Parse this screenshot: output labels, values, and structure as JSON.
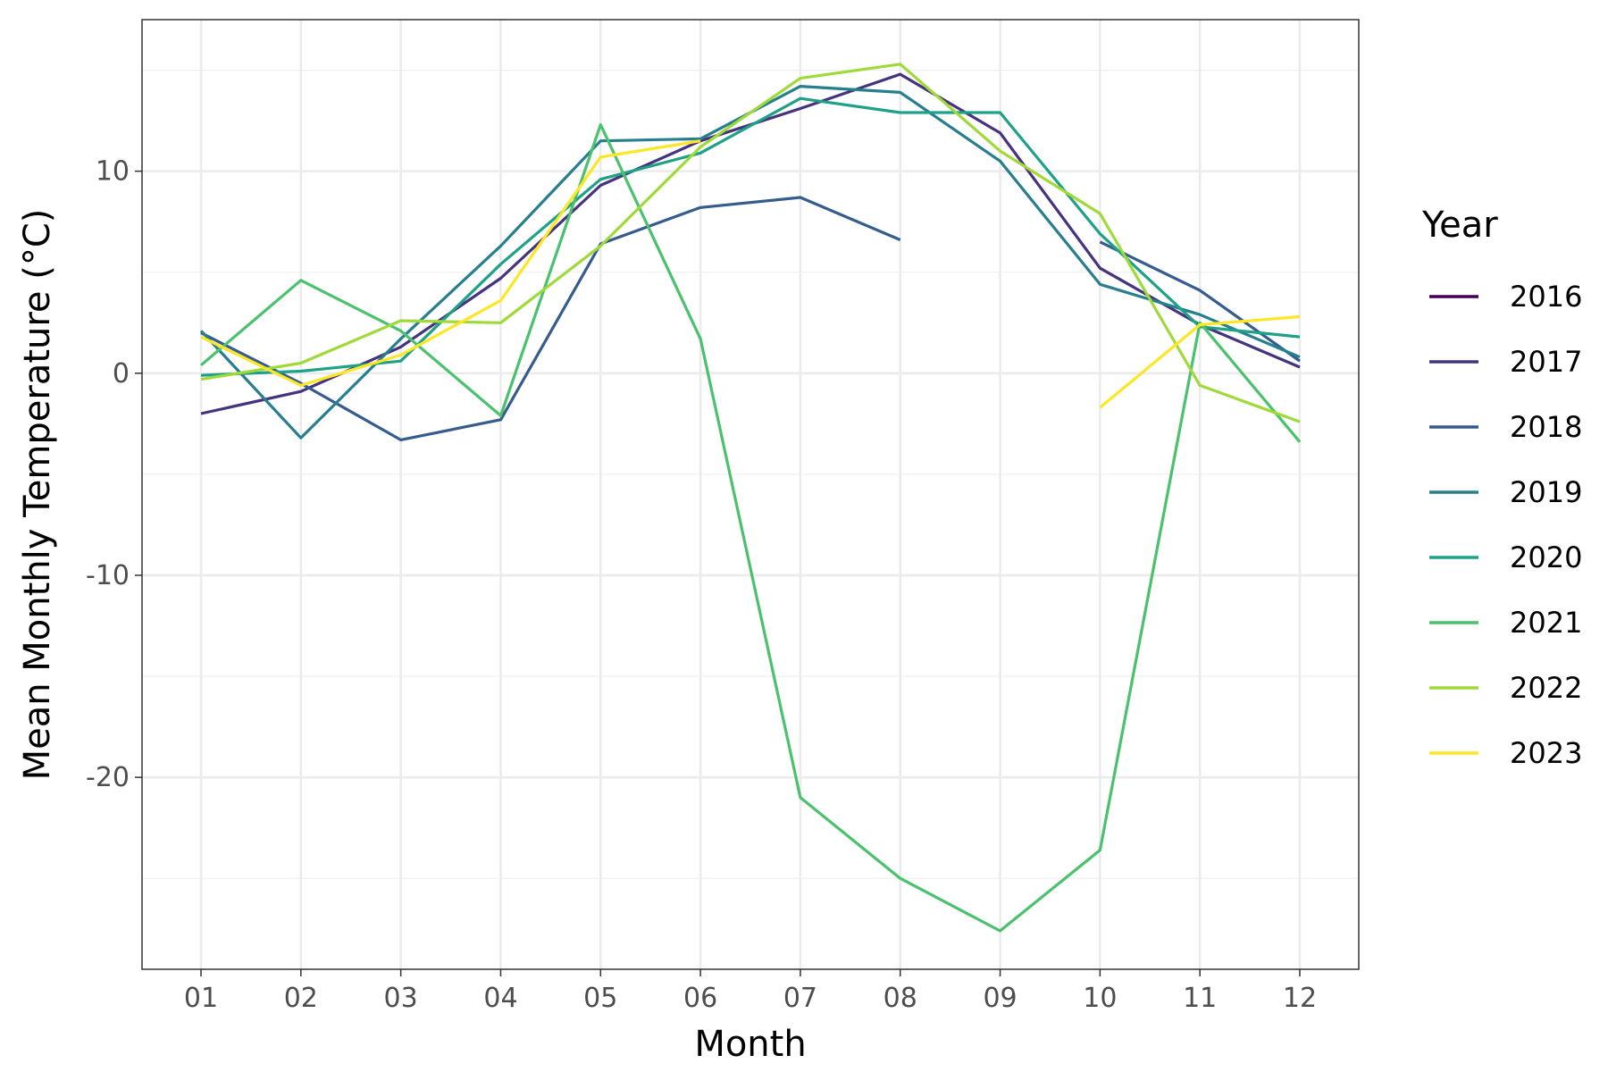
{
  "chart_data": {
    "type": "line",
    "xlabel": "Month",
    "ylabel": "Mean Monthly Temperature (°C)",
    "categories": [
      "01",
      "02",
      "03",
      "04",
      "05",
      "06",
      "07",
      "08",
      "09",
      "10",
      "11",
      "12"
    ],
    "ylim": [
      -29.5,
      17.5
    ],
    "yticks": [
      -20,
      -10,
      0,
      10
    ],
    "ytick_labels": [
      "-20",
      "-10",
      "0",
      "10"
    ],
    "grid": true,
    "legend": {
      "title": "Year",
      "placement": "right"
    },
    "series": [
      {
        "name": "2016",
        "color": "#440154",
        "values": [
          null,
          null,
          null,
          null,
          null,
          null,
          null,
          null,
          null,
          null,
          null,
          null
        ]
      },
      {
        "name": "2017",
        "color": "#46337E",
        "values": [
          -2.0,
          -0.9,
          1.3,
          4.7,
          9.3,
          11.5,
          13.1,
          14.8,
          11.9,
          5.2,
          2.4,
          0.3
        ]
      },
      {
        "name": "2018",
        "color": "#365C8D",
        "values": [
          2.0,
          -0.5,
          -3.3,
          -2.3,
          6.4,
          8.2,
          8.7,
          6.6,
          null,
          6.5,
          4.1,
          0.6
        ]
      },
      {
        "name": "2019",
        "color": "#277F8E",
        "values": [
          2.1,
          -3.2,
          1.7,
          6.3,
          11.5,
          11.6,
          14.2,
          13.9,
          10.5,
          4.4,
          2.9,
          0.8
        ]
      },
      {
        "name": "2020",
        "color": "#1FA187",
        "values": [
          -0.1,
          0.1,
          0.6,
          5.4,
          9.6,
          10.9,
          13.6,
          12.9,
          12.9,
          6.9,
          2.3,
          1.8
        ]
      },
      {
        "name": "2021",
        "color": "#4AC16D",
        "values": [
          0.4,
          4.6,
          2.1,
          -2.1,
          12.3,
          1.7,
          -21.0,
          -25.0,
          -27.6,
          -23.6,
          2.5,
          -3.4
        ]
      },
      {
        "name": "2022",
        "color": "#9FDA3A",
        "values": [
          -0.3,
          0.5,
          2.6,
          2.5,
          6.3,
          11.2,
          14.6,
          15.3,
          11.0,
          7.9,
          -0.6,
          -2.4
        ]
      },
      {
        "name": "2023",
        "color": "#FDE725",
        "values": [
          1.8,
          -0.6,
          0.9,
          3.6,
          10.7,
          11.5,
          null,
          null,
          null,
          -1.7,
          2.4,
          2.8
        ]
      }
    ]
  }
}
